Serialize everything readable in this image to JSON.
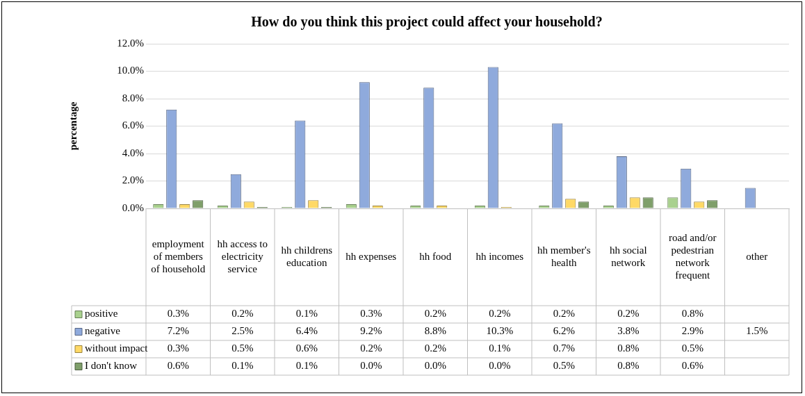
{
  "chart_data": {
    "type": "bar",
    "title": "How do you think this project could affect your household?",
    "ylabel": "percentage",
    "categories": [
      "employment of members of household",
      "hh access to electricity service",
      "hh childrens education",
      "hh expenses",
      "hh food",
      "hh incomes",
      "hh member's health",
      "hh social network",
      "road and/or pedestrian network frequent",
      "other"
    ],
    "series": [
      {
        "name": "positive",
        "color": "#a9d18e",
        "values": [
          0.3,
          0.2,
          0.1,
          0.3,
          0.2,
          0.2,
          0.2,
          0.2,
          0.8,
          null
        ],
        "value_labels": [
          "0.3%",
          "0.2%",
          "0.1%",
          "0.3%",
          "0.2%",
          "0.2%",
          "0.2%",
          "0.2%",
          "0.8%",
          null
        ]
      },
      {
        "name": "negative",
        "color": "#8faadc",
        "values": [
          7.2,
          2.5,
          6.4,
          9.2,
          8.8,
          10.3,
          6.2,
          3.8,
          2.9,
          1.5
        ],
        "value_labels": [
          "7.2%",
          "2.5%",
          "6.4%",
          "9.2%",
          "8.8%",
          "10.3%",
          "6.2%",
          "3.8%",
          "2.9%",
          "1.5%"
        ]
      },
      {
        "name": "without impact",
        "color": "#ffd966",
        "values": [
          0.3,
          0.5,
          0.6,
          0.2,
          0.2,
          0.1,
          0.7,
          0.8,
          0.5,
          null
        ],
        "value_labels": [
          "0.3%",
          "0.5%",
          "0.6%",
          "0.2%",
          "0.2%",
          "0.1%",
          "0.7%",
          "0.8%",
          "0.5%",
          null
        ]
      },
      {
        "name": "I don't know",
        "color": "#7f9f6a",
        "values": [
          0.6,
          0.1,
          0.1,
          0.0,
          0.0,
          0.0,
          0.5,
          0.8,
          0.6,
          null
        ],
        "value_labels": [
          "0.6%",
          "0.1%",
          "0.1%",
          "0.0%",
          "0.0%",
          "0.0%",
          "0.5%",
          "0.8%",
          "0.6%",
          null
        ]
      }
    ],
    "ylim": [
      0,
      12
    ],
    "yticks": [
      {
        "value": 0,
        "label": "0.0%"
      },
      {
        "value": 2,
        "label": "2.0%"
      },
      {
        "value": 4,
        "label": "4.0%"
      },
      {
        "value": 6,
        "label": "6.0%"
      },
      {
        "value": 8,
        "label": "8.0%"
      },
      {
        "value": 10,
        "label": "10.0%"
      },
      {
        "value": 12,
        "label": "12.0%"
      }
    ],
    "grid": "y",
    "legend": "bottom left"
  }
}
